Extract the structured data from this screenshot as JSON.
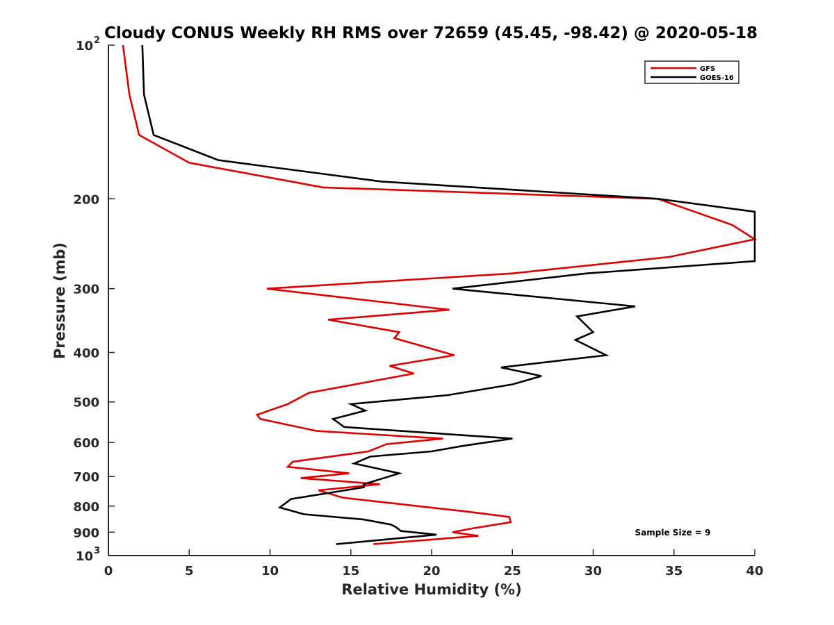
{
  "chart_data": {
    "type": "line",
    "title": "Cloudy CONUS Weekly RH RMS over 72659 (45.45, -98.42) @ 2020-05-18",
    "xlabel": "Relative Humidity (%)",
    "ylabel": "Pressure (mb)",
    "xlim": [
      0,
      40
    ],
    "ylim": [
      100,
      1000
    ],
    "y_scale": "log",
    "y_reversed": true,
    "grid": false,
    "legend_position": "top-right",
    "x_ticks": [
      {
        "value": 0,
        "label": "0"
      },
      {
        "value": 5,
        "label": "5"
      },
      {
        "value": 10,
        "label": "10"
      },
      {
        "value": 15,
        "label": "15"
      },
      {
        "value": 20,
        "label": "20"
      },
      {
        "value": 25,
        "label": "25"
      },
      {
        "value": 30,
        "label": "30"
      },
      {
        "value": 35,
        "label": "35"
      },
      {
        "value": 40,
        "label": "40"
      }
    ],
    "y_ticks": [
      {
        "value": 100,
        "label": "10",
        "sup": "2"
      },
      {
        "value": 200,
        "label": "200",
        "sup": ""
      },
      {
        "value": 300,
        "label": "300",
        "sup": ""
      },
      {
        "value": 400,
        "label": "400",
        "sup": ""
      },
      {
        "value": 500,
        "label": "500",
        "sup": ""
      },
      {
        "value": 600,
        "label": "600",
        "sup": ""
      },
      {
        "value": 700,
        "label": "700",
        "sup": ""
      },
      {
        "value": 800,
        "label": "800",
        "sup": ""
      },
      {
        "value": 900,
        "label": "900",
        "sup": ""
      },
      {
        "value": 1000,
        "label": "10",
        "sup": "3"
      }
    ],
    "series": [
      {
        "name": "GFS",
        "color": "#e00000",
        "points": [
          {
            "x": 0.9,
            "y": 100
          },
          {
            "x": 1.3,
            "y": 125
          },
          {
            "x": 1.9,
            "y": 150
          },
          {
            "x": 5.0,
            "y": 170
          },
          {
            "x": 13.3,
            "y": 190
          },
          {
            "x": 34.0,
            "y": 200
          },
          {
            "x": 38.6,
            "y": 225
          },
          {
            "x": 40.0,
            "y": 240
          },
          {
            "x": 34.7,
            "y": 260
          },
          {
            "x": 25.0,
            "y": 280
          },
          {
            "x": 9.8,
            "y": 300
          },
          {
            "x": 21.1,
            "y": 330
          },
          {
            "x": 13.6,
            "y": 345
          },
          {
            "x": 18.0,
            "y": 365
          },
          {
            "x": 17.7,
            "y": 375
          },
          {
            "x": 21.4,
            "y": 405
          },
          {
            "x": 17.4,
            "y": 425
          },
          {
            "x": 18.9,
            "y": 440
          },
          {
            "x": 12.4,
            "y": 480
          },
          {
            "x": 11.1,
            "y": 505
          },
          {
            "x": 9.2,
            "y": 530
          },
          {
            "x": 9.4,
            "y": 540
          },
          {
            "x": 12.9,
            "y": 570
          },
          {
            "x": 20.7,
            "y": 590
          },
          {
            "x": 17.2,
            "y": 605
          },
          {
            "x": 16.1,
            "y": 625
          },
          {
            "x": 11.4,
            "y": 655
          },
          {
            "x": 11.1,
            "y": 670
          },
          {
            "x": 14.9,
            "y": 690
          },
          {
            "x": 11.9,
            "y": 705
          },
          {
            "x": 16.8,
            "y": 725
          },
          {
            "x": 13.0,
            "y": 745
          },
          {
            "x": 14.5,
            "y": 770
          },
          {
            "x": 22.2,
            "y": 820
          },
          {
            "x": 24.8,
            "y": 840
          },
          {
            "x": 24.9,
            "y": 860
          },
          {
            "x": 22.5,
            "y": 885
          },
          {
            "x": 21.3,
            "y": 900
          },
          {
            "x": 22.9,
            "y": 915
          },
          {
            "x": 16.4,
            "y": 950
          }
        ]
      },
      {
        "name": "GOES-16",
        "color": "#000000",
        "points": [
          {
            "x": 2.1,
            "y": 100
          },
          {
            "x": 2.2,
            "y": 125
          },
          {
            "x": 2.8,
            "y": 150
          },
          {
            "x": 6.8,
            "y": 168
          },
          {
            "x": 16.9,
            "y": 185
          },
          {
            "x": 34.0,
            "y": 200
          },
          {
            "x": 40.0,
            "y": 212
          },
          {
            "x": 40.0,
            "y": 265
          },
          {
            "x": 29.6,
            "y": 280
          },
          {
            "x": 21.3,
            "y": 300
          },
          {
            "x": 32.6,
            "y": 325
          },
          {
            "x": 29.0,
            "y": 340
          },
          {
            "x": 30.0,
            "y": 365
          },
          {
            "x": 28.9,
            "y": 378
          },
          {
            "x": 30.8,
            "y": 405
          },
          {
            "x": 24.3,
            "y": 428
          },
          {
            "x": 26.8,
            "y": 445
          },
          {
            "x": 25.0,
            "y": 462
          },
          {
            "x": 21.0,
            "y": 485
          },
          {
            "x": 15.0,
            "y": 505
          },
          {
            "x": 15.9,
            "y": 520
          },
          {
            "x": 13.9,
            "y": 540
          },
          {
            "x": 14.6,
            "y": 560
          },
          {
            "x": 25.0,
            "y": 590
          },
          {
            "x": 21.9,
            "y": 610
          },
          {
            "x": 20.0,
            "y": 625
          },
          {
            "x": 16.2,
            "y": 640
          },
          {
            "x": 15.2,
            "y": 660
          },
          {
            "x": 18.0,
            "y": 690
          },
          {
            "x": 15.8,
            "y": 725
          },
          {
            "x": 15.8,
            "y": 735
          },
          {
            "x": 11.3,
            "y": 775
          },
          {
            "x": 10.6,
            "y": 805
          },
          {
            "x": 12.1,
            "y": 830
          },
          {
            "x": 15.8,
            "y": 850
          },
          {
            "x": 17.5,
            "y": 870
          },
          {
            "x": 17.8,
            "y": 880
          },
          {
            "x": 18.1,
            "y": 895
          },
          {
            "x": 20.3,
            "y": 910
          },
          {
            "x": 14.1,
            "y": 950
          }
        ]
      }
    ],
    "annotations": [
      "Sample Size = 9"
    ]
  }
}
